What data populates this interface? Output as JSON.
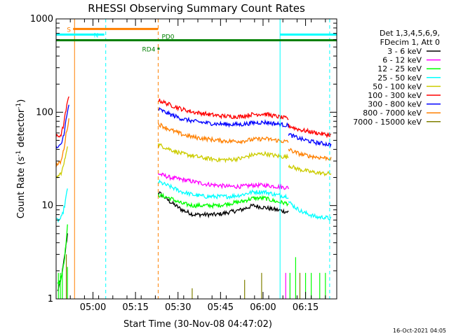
{
  "chart_data": {
    "type": "line",
    "title": "RHESSI Observing Summary Count Rates",
    "xlabel": "Start Time (30-Nov-08 04:47:02)",
    "ylabel_main": "Count Rate (s",
    "ylabel_sup1": "-1",
    "ylabel_mid": " detector",
    "ylabel_sup2": "-1",
    "ylabel_end": ")",
    "yscale": "log",
    "ylim": [
      1,
      1000
    ],
    "xlim_minutes": [
      0,
      99
    ],
    "x_ticks": [
      {
        "label": "05:00",
        "minute": 13
      },
      {
        "label": "05:15",
        "minute": 28
      },
      {
        "label": "05:30",
        "minute": 43
      },
      {
        "label": "05:45",
        "minute": 58
      },
      {
        "label": "06:00",
        "minute": 73
      },
      {
        "label": "06:15",
        "minute": 88
      }
    ],
    "y_ticks": [
      {
        "label": "1",
        "value": 1
      },
      {
        "label": "10",
        "value": 10
      },
      {
        "label": "100",
        "value": 100
      },
      {
        "label": "1000",
        "value": 1000
      }
    ],
    "legend_header": [
      "Det 1,3,4,5,6,9,",
      "FDecim 1, Att 0"
    ],
    "timestamp": "16-Oct-2021 04:05",
    "series": [
      {
        "name": "3 - 6 keV",
        "color": "#000000",
        "seg1": {
          "start": 0.5,
          "end": 4,
          "vals": [
            1.2,
            1.5,
            2.0,
            3.0,
            5.0
          ]
        },
        "seg2": {
          "start": 36,
          "end": 82,
          "vals": [
            14,
            11,
            9,
            8,
            8,
            8,
            8.5,
            9,
            10,
            9.5,
            9,
            8.5
          ]
        }
      },
      {
        "name": "6 - 12 keV",
        "color": "#ff00ff",
        "seg1": null,
        "seg2": {
          "start": 36,
          "end": 82,
          "vals": [
            22,
            20,
            19,
            18,
            17,
            16.5,
            16,
            16,
            16.5,
            16.5,
            16,
            15.5
          ]
        }
      },
      {
        "name": "12 - 25 keV",
        "color": "#00ff00",
        "seg1": {
          "start": 0.5,
          "end": 4,
          "vals": [
            1.5,
            1.5,
            2.0,
            3.0,
            6.0
          ]
        },
        "seg2": {
          "start": 36,
          "end": 82,
          "vals": [
            13,
            12,
            10.5,
            10,
            10,
            10,
            10.5,
            11,
            12,
            12,
            11,
            10.5
          ]
        }
      },
      {
        "name": "25 - 50 keV",
        "color": "#00ffff",
        "seg1": {
          "start": 0,
          "end": 4,
          "vals": [
            7,
            7,
            7.5,
            10,
            15
          ]
        },
        "seg2": {
          "start": 36,
          "end": 82,
          "vals": [
            18,
            16,
            14,
            13,
            12.5,
            12.5,
            12.5,
            13,
            14,
            14,
            13,
            12.5
          ]
        },
        "seg3": {
          "start": 82,
          "end": 97,
          "vals": [
            11,
            9.5,
            8.5,
            8,
            7.5,
            7.5,
            7.2
          ]
        }
      },
      {
        "name": "50 - 100 keV",
        "color": "#cccc00",
        "seg1": {
          "start": 0,
          "end": 4,
          "vals": [
            20,
            21,
            23,
            30,
            45
          ]
        },
        "seg2": {
          "start": 36,
          "end": 82,
          "vals": [
            45,
            40,
            36,
            34,
            32,
            31,
            31,
            32,
            35,
            36,
            34,
            33
          ]
        },
        "seg3": {
          "start": 82,
          "end": 97,
          "vals": [
            27,
            25,
            24,
            23,
            22.5,
            22,
            22
          ]
        }
      },
      {
        "name": "100 - 300 keV",
        "color": "#ff0000",
        "seg1": {
          "start": 0,
          "end": 4.5,
          "vals": [
            55,
            55,
            58,
            75,
            110,
            150
          ]
        },
        "seg2": {
          "start": 36,
          "end": 82,
          "vals": [
            135,
            120,
            108,
            100,
            96,
            92,
            90,
            90,
            95,
            96,
            90,
            85
          ]
        },
        "seg3": {
          "start": 82,
          "end": 97,
          "vals": [
            72,
            67,
            64,
            62,
            60,
            58,
            57
          ]
        }
      },
      {
        "name": "300 - 800 keV",
        "color": "#0000ff",
        "seg1": {
          "start": 0,
          "end": 4.5,
          "vals": [
            42,
            42,
            45,
            58,
            85,
            120
          ]
        },
        "seg2": {
          "start": 36,
          "end": 82,
          "vals": [
            108,
            95,
            85,
            80,
            77,
            75,
            74,
            74,
            77,
            78,
            75,
            72
          ]
        },
        "seg3": {
          "start": 82,
          "end": 97,
          "vals": [
            58,
            54,
            51,
            49,
            47,
            46,
            45
          ]
        }
      },
      {
        "name": "800 - 7000 keV",
        "color": "#ff8000",
        "seg1": {
          "start": 0,
          "end": 4.5,
          "vals": [
            27,
            28,
            30,
            40,
            60,
            85
          ]
        },
        "seg2": {
          "start": 36,
          "end": 82,
          "vals": [
            75,
            65,
            58,
            54,
            52,
            50,
            49,
            49,
            51,
            52,
            50,
            48
          ]
        },
        "seg3": {
          "start": 82,
          "end": 97,
          "vals": [
            40,
            37,
            35,
            34,
            33,
            32.5,
            32
          ]
        }
      },
      {
        "name": "7000 - 15000 keV",
        "color": "#808000",
        "seg1": null,
        "seg2": null
      }
    ],
    "annotations": [
      {
        "label": "S",
        "color": "#ff8000",
        "start": 6,
        "end": 36,
        "level": 780
      },
      {
        "label": "N",
        "color": "#00ffff",
        "start": 0,
        "end": 17,
        "level": 680,
        "start2": 79,
        "end2": 99
      },
      {
        "label": "PD0",
        "color": "#008000",
        "start": 0,
        "end": 99,
        "level": 590
      },
      {
        "label": "RD4",
        "color": "#008000",
        "start": 36,
        "end": 36,
        "level": 480
      }
    ],
    "vertical_lines": [
      {
        "name": "orange-solid",
        "minute": 6.5,
        "color": "#ff8000",
        "dashed": false
      },
      {
        "name": "cyan-dashed-1",
        "minute": 17.5,
        "color": "#00ffff",
        "dashed": true
      },
      {
        "name": "orange-dashed",
        "minute": 36,
        "color": "#ff8000",
        "dashed": true
      },
      {
        "name": "cyan-solid",
        "minute": 79,
        "color": "#00ffff",
        "dashed": false
      },
      {
        "name": "cyan-dashed-2",
        "minute": 96.5,
        "color": "#00ffff",
        "dashed": true
      }
    ]
  }
}
